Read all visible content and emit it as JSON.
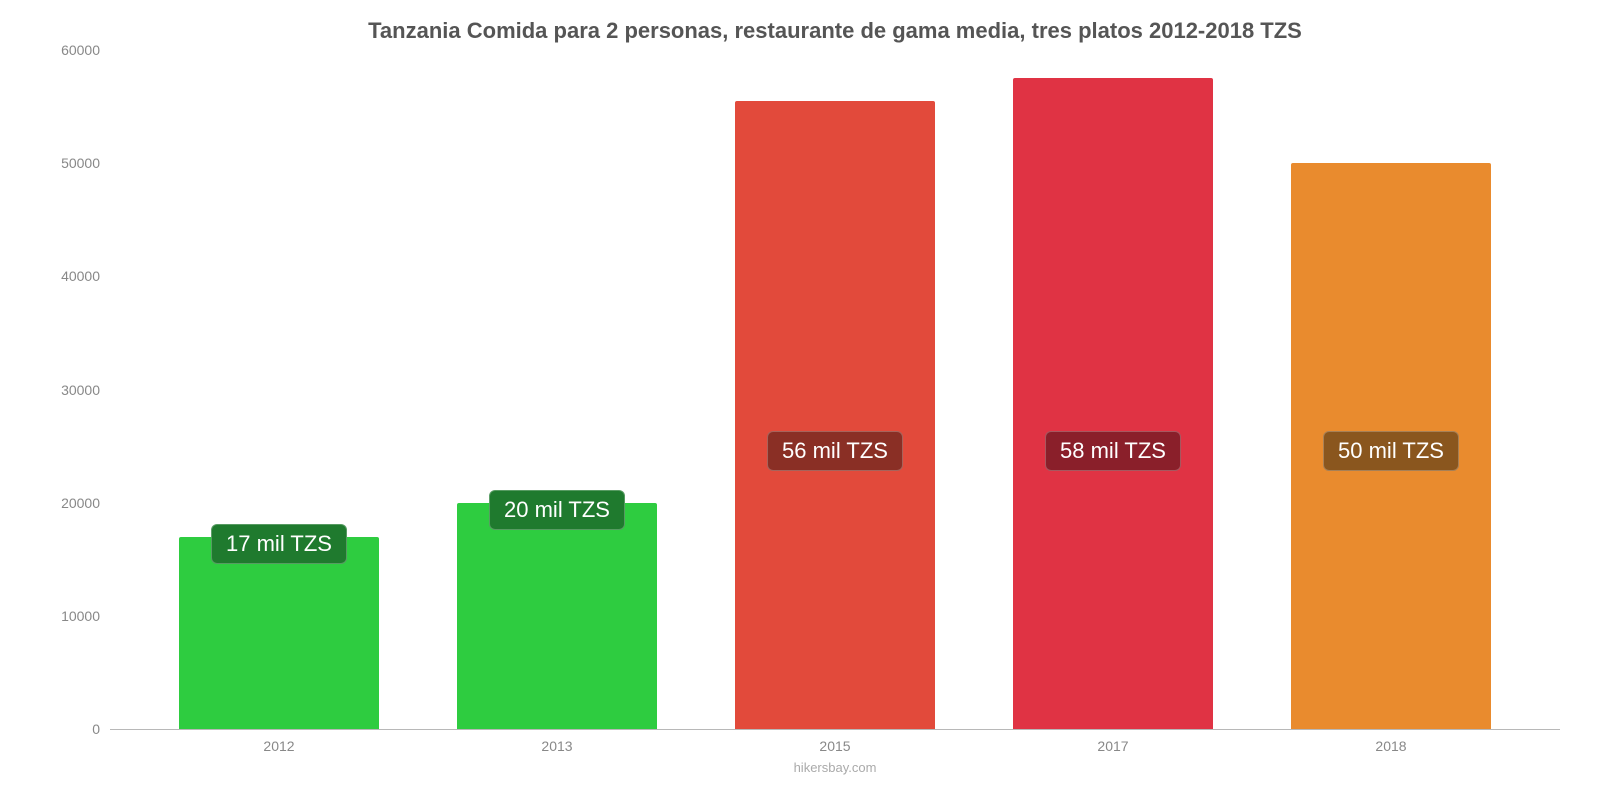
{
  "chart": {
    "type": "bar",
    "title": "Tanzania Comida para 2 personas, restaurante de gama media, tres platos 2012-2018 TZS",
    "title_color": "#555555",
    "title_fontsize": 22,
    "background_color": "#ffffff",
    "axis_color": "#b8b8b8",
    "tick_label_color": "#888888",
    "tick_fontsize": 14,
    "ylim": [
      0,
      60000
    ],
    "ytick_step": 10000,
    "yticks": [
      {
        "value": 0,
        "label": "0"
      },
      {
        "value": 10000,
        "label": "10000"
      },
      {
        "value": 20000,
        "label": "20000"
      },
      {
        "value": 30000,
        "label": "30000"
      },
      {
        "value": 40000,
        "label": "40000"
      },
      {
        "value": 50000,
        "label": "50000"
      },
      {
        "value": 60000,
        "label": "60000"
      }
    ],
    "bar_width": 0.72,
    "bars": [
      {
        "category": "2012",
        "value": 17000,
        "color": "#2ecc40",
        "label": "17 mil TZS",
        "label_bg": "#1f7a2e"
      },
      {
        "category": "2013",
        "value": 20000,
        "color": "#2ecc40",
        "label": "20 mil TZS",
        "label_bg": "#1f7a2e"
      },
      {
        "category": "2015",
        "value": 55500,
        "color": "#e24a3b",
        "label": "56 mil TZS",
        "label_bg": "#8a2f25"
      },
      {
        "category": "2017",
        "value": 57500,
        "color": "#e03344",
        "label": "58 mil TZS",
        "label_bg": "#8a1f2a"
      },
      {
        "category": "2018",
        "value": 50000,
        "color": "#e98b2e",
        "label": "50 mil TZS",
        "label_bg": "#8a561e"
      }
    ],
    "data_label_fontsize": 22,
    "data_label_color": "#ffffff",
    "source_text": "hikersbay.com",
    "source_color": "#aaaaaa",
    "source_fontsize": 13
  }
}
